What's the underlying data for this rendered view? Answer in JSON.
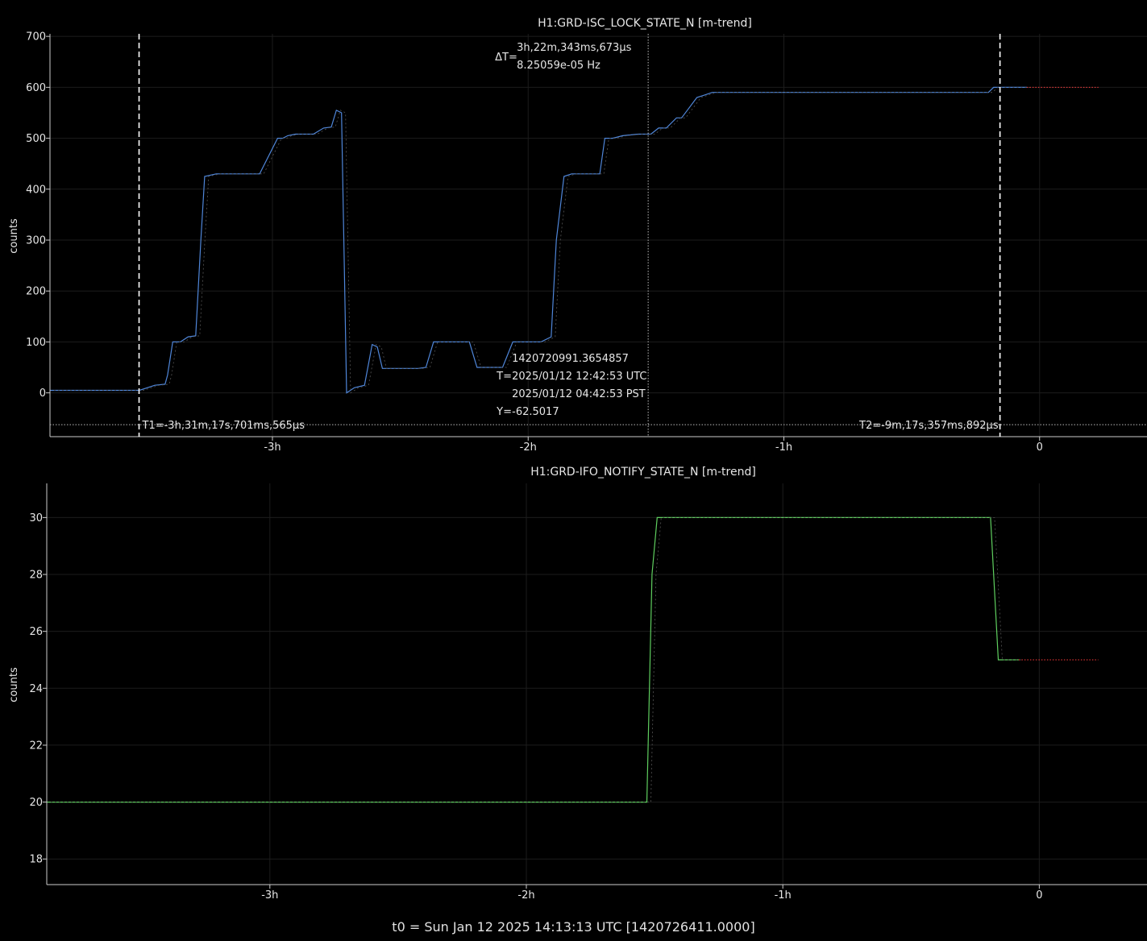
{
  "footer": "t0 = Sun Jan 12 2025 14:13:13 UTC [1420726411.0000]",
  "colors": {
    "background": "#000000",
    "axis": "#cccccc",
    "grid": "#1c1c1c",
    "text": "#e6e6e6",
    "series_blue": "#4f86d9",
    "series_green": "#5fcf5f",
    "reference": "#ff3b3b",
    "cursor": "#ffffff"
  },
  "chart_data": [
    {
      "type": "line",
      "title": "H1:GRD-ISC_LOCK_STATE_N [m-trend]",
      "xlabel": "",
      "ylabel": "counts",
      "xlim": [
        -3.87,
        0.42
      ],
      "ylim": [
        -86,
        705
      ],
      "x_unit": "hours relative to t0",
      "x_ticks": [
        -3,
        -2,
        -1,
        0
      ],
      "x_tick_labels": [
        "-3h",
        "-2h",
        "-1h",
        "0"
      ],
      "y_ticks": [
        0,
        100,
        200,
        300,
        400,
        500,
        600,
        700
      ],
      "grid": true,
      "series": [
        {
          "color": "#4f86d9",
          "x": [
            -3.87,
            -3.52,
            -3.46,
            -3.42,
            -3.41,
            -3.39,
            -3.36,
            -3.33,
            -3.3,
            -3.28,
            -3.265,
            -3.22,
            -3.19,
            -3.17,
            -3.13,
            -3.05,
            -2.98,
            -2.96,
            -2.94,
            -2.91,
            -2.84,
            -2.8,
            -2.77,
            -2.75,
            -2.73,
            -2.71,
            -2.695,
            -2.68,
            -2.64,
            -2.61,
            -2.59,
            -2.57,
            -2.55,
            -2.51,
            -2.43,
            -2.4,
            -2.37,
            -2.3,
            -2.23,
            -2.2,
            -2.17,
            -2.12,
            -2.1,
            -2.06,
            -1.98,
            -1.95,
            -1.91,
            -1.89,
            -1.86,
            -1.83,
            -1.74,
            -1.72,
            -1.7,
            -1.67,
            -1.63,
            -1.57,
            -1.52,
            -1.49,
            -1.46,
            -1.42,
            -1.4,
            -1.37,
            -1.34,
            -1.31,
            -1.28,
            -1.25,
            -1.22,
            -0.2,
            -0.18,
            -0.15,
            -0.05
          ],
          "y": [
            5,
            5,
            15,
            17,
            35,
            100,
            100,
            110,
            112,
            300,
            425,
            430,
            430,
            430,
            430,
            430,
            500,
            500,
            505,
            508,
            508,
            520,
            522,
            555,
            550,
            0,
            5,
            10,
            15,
            95,
            90,
            48,
            48,
            48,
            48,
            50,
            100,
            100,
            100,
            50,
            50,
            50,
            50,
            100,
            100,
            100,
            110,
            300,
            425,
            430,
            430,
            430,
            500,
            500,
            505,
            508,
            508,
            520,
            520,
            540,
            540,
            560,
            580,
            585,
            590,
            590,
            590,
            590,
            600,
            600,
            600
          ]
        },
        {
          "color": "#ff3b3b",
          "style": "dotted",
          "x": [
            -0.05,
            0.23
          ],
          "y": [
            600,
            600
          ]
        }
      ]
    },
    {
      "type": "line",
      "title": "H1:GRD-IFO_NOTIFY_STATE_N [m-trend]",
      "xlabel": "",
      "ylabel": "counts",
      "xlim": [
        -3.87,
        0.42
      ],
      "ylim": [
        17.1,
        31.2
      ],
      "x_unit": "hours relative to t0",
      "x_ticks": [
        -3,
        -2,
        -1,
        0
      ],
      "x_tick_labels": [
        "-3h",
        "-2h",
        "-1h",
        "0"
      ],
      "y_ticks": [
        18,
        20,
        22,
        24,
        26,
        28,
        30
      ],
      "grid": true,
      "series": [
        {
          "color": "#5fcf5f",
          "x": [
            -3.87,
            -1.53,
            -1.51,
            -1.49,
            -0.2,
            -0.19,
            -0.16,
            -0.08
          ],
          "y": [
            20,
            20,
            28,
            30,
            30,
            30,
            25,
            25
          ]
        },
        {
          "color": "#ff3b3b",
          "style": "dotted",
          "x": [
            -0.08,
            0.23
          ],
          "y": [
            25,
            25
          ]
        }
      ]
    }
  ],
  "cursors": {
    "t1_label": "T1=-3h,31m,17s,701ms,565µs",
    "t2_label": "T2=-9m,17s,357ms,892µs",
    "t1_x": -3.5216,
    "t2_x": -0.1549,
    "mid_x": -1.5307,
    "y_value": -62.5017,
    "delta_label": "ΔT=",
    "delta_value": "3h,22m,343ms,673µs",
    "delta_freq": "8.25059e-05 Hz",
    "readout_gps": "1420720991.3654857",
    "readout_t_label": "T=",
    "readout_utc": "2025/01/12 12:42:53 UTC",
    "readout_pst": "2025/01/12 04:42:53 PST",
    "readout_y_label": "Y=",
    "readout_y": "-62.5017"
  }
}
